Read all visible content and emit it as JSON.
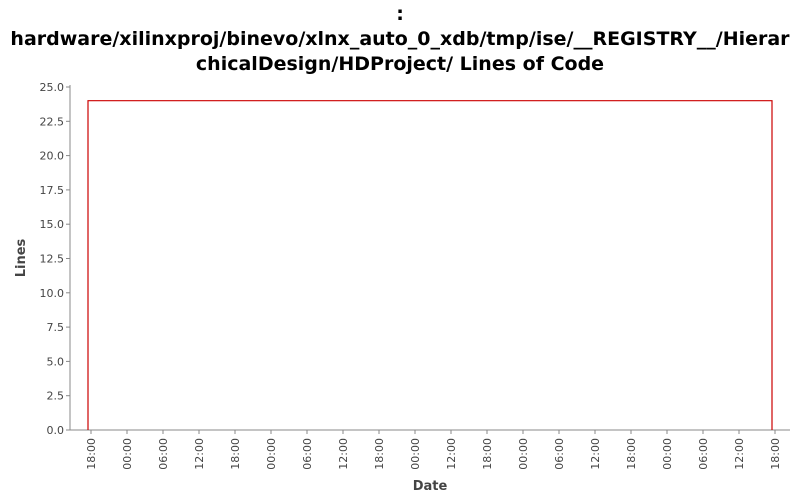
{
  "title": {
    "lines": [
      ":",
      "hardware/xilinxproj/binevo/xlnx_auto_0_xdb/tmp/ise/__REGISTRY__/Hierar",
      "chicalDesign/HDProject/ Lines of Code"
    ]
  },
  "chart_data": {
    "type": "line",
    "title": ": hardware/xilinxproj/binevo/xlnx_auto_0_xdb/tmp/ise/__REGISTRY__/HierarchicalDesign/HDProject/ Lines of Code",
    "xlabel": "Date",
    "ylabel": "Lines",
    "ylim": [
      0,
      25
    ],
    "yticks": [
      "0.0",
      "2.5",
      "5.0",
      "7.5",
      "10.0",
      "12.5",
      "15.0",
      "17.5",
      "20.0",
      "22.5",
      "25.0"
    ],
    "xticks": [
      "18:00",
      "00:00",
      "06:00",
      "12:00",
      "18:00",
      "00:00",
      "06:00",
      "12:00",
      "18:00",
      "00:00",
      "12:00",
      "18:00",
      "00:00",
      "06:00",
      "12:00",
      "18:00",
      "00:00",
      "06:00",
      "12:00",
      "18:00",
      "00:00",
      "06:00",
      "12:00"
    ],
    "xrange_hours": [
      -3.5,
      116.5
    ],
    "series": [
      {
        "color": "#cc0000",
        "x_hours": [
          -0.5,
          -0.5,
          113.5,
          113.5
        ],
        "values": [
          0,
          24,
          24,
          0
        ]
      }
    ],
    "grid": false
  }
}
